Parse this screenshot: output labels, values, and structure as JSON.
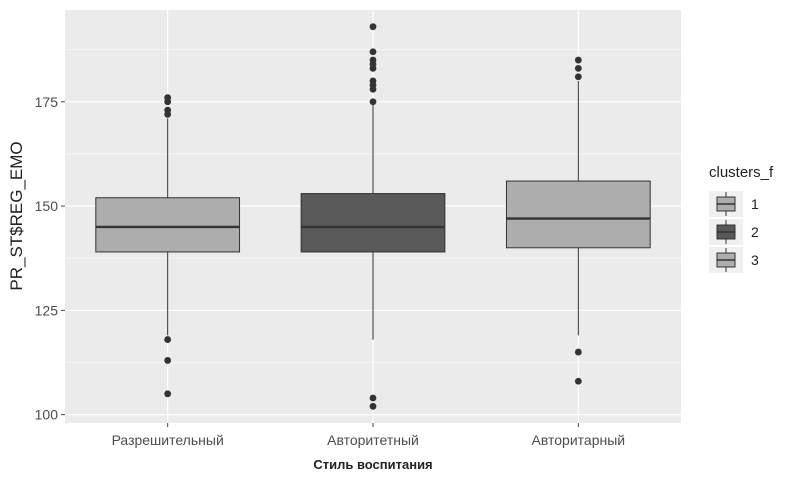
{
  "chart_data": {
    "type": "boxplot",
    "title": "",
    "xlabel": "Стиль воспитания",
    "ylabel": "PR_ST$REG_EMO",
    "categories": [
      "Разрешительный",
      "Авторитетный",
      "Авторитарный"
    ],
    "ylim": [
      98,
      197
    ],
    "yticks": [
      100,
      125,
      150,
      175
    ],
    "grid": true,
    "legend": {
      "title": "clusters_f",
      "position": "right",
      "entries": [
        "1",
        "2",
        "3"
      ],
      "colors": [
        "#adadad",
        "#595959",
        "#adadad"
      ]
    },
    "boxes": [
      {
        "category": "Разрешительный",
        "cluster": "1",
        "whisker_low": 119,
        "q1": 139,
        "median": 145,
        "q3": 152,
        "whisker_high": 171,
        "outliers": [
          105,
          113,
          118,
          172,
          173,
          175,
          176
        ]
      },
      {
        "category": "Авторитетный",
        "cluster": "2",
        "whisker_low": 118,
        "q1": 139,
        "median": 145,
        "q3": 153,
        "whisker_high": 175,
        "outliers": [
          102,
          104,
          175,
          178,
          179,
          180,
          183,
          184,
          185,
          187,
          193
        ]
      },
      {
        "category": "Авторитарный",
        "cluster": "3",
        "whisker_low": 119,
        "q1": 140,
        "median": 147,
        "q3": 156,
        "whisker_high": 180,
        "outliers": [
          108,
          115,
          181,
          183,
          185
        ]
      }
    ]
  }
}
